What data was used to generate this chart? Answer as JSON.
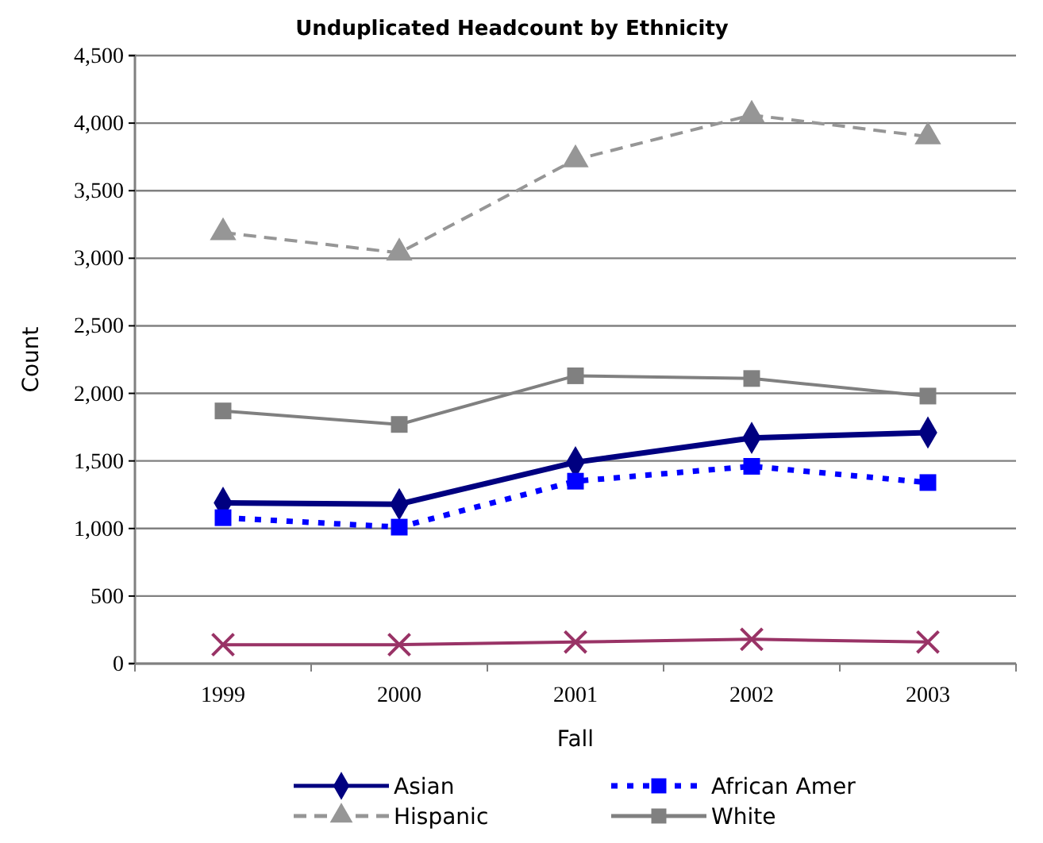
{
  "chart_data": {
    "type": "line",
    "title": "Unduplicated Headcount by Ethnicity",
    "xlabel": "Fall",
    "ylabel": "Count",
    "categories": [
      "1999",
      "2000",
      "2001",
      "2002",
      "2003"
    ],
    "ylim": [
      0,
      4500
    ],
    "yticks": [
      0,
      {
        "value": 500,
        "label": "500"
      },
      {
        "value": 1000,
        "label": "1,000"
      },
      {
        "value": 1500,
        "label": "1,500"
      },
      {
        "value": 2000,
        "label": "2,000"
      },
      {
        "value": 2500,
        "label": "2,500"
      },
      {
        "value": 3000,
        "label": "3,000"
      },
      {
        "value": 3500,
        "label": "3,500"
      },
      {
        "value": 4000,
        "label": "4,000"
      },
      {
        "value": 4500,
        "label": "4,500"
      }
    ],
    "grid": "y",
    "legend": "bottom",
    "series": [
      {
        "name": "Asian",
        "color": "#000080",
        "marker": "diamond",
        "line_style": "solid",
        "values": [
          1190,
          1180,
          1490,
          1670,
          1710
        ]
      },
      {
        "name": "African Amer",
        "color": "#0000ff",
        "marker": "square",
        "line_style": "dotted",
        "values": [
          1080,
          1010,
          1350,
          1460,
          1340
        ]
      },
      {
        "name": "Hispanic",
        "color": "#969696",
        "marker": "triangle",
        "line_style": "dashed",
        "values": [
          3190,
          3040,
          3730,
          4060,
          3900
        ]
      },
      {
        "name": "White",
        "color": "#808080",
        "marker": "square",
        "line_style": "solid",
        "values": [
          1870,
          1770,
          2130,
          2110,
          1980
        ]
      },
      {
        "color": "#993366",
        "marker": "cross",
        "line_style": "solid",
        "values": [
          140,
          140,
          160,
          180,
          160
        ]
      }
    ]
  }
}
